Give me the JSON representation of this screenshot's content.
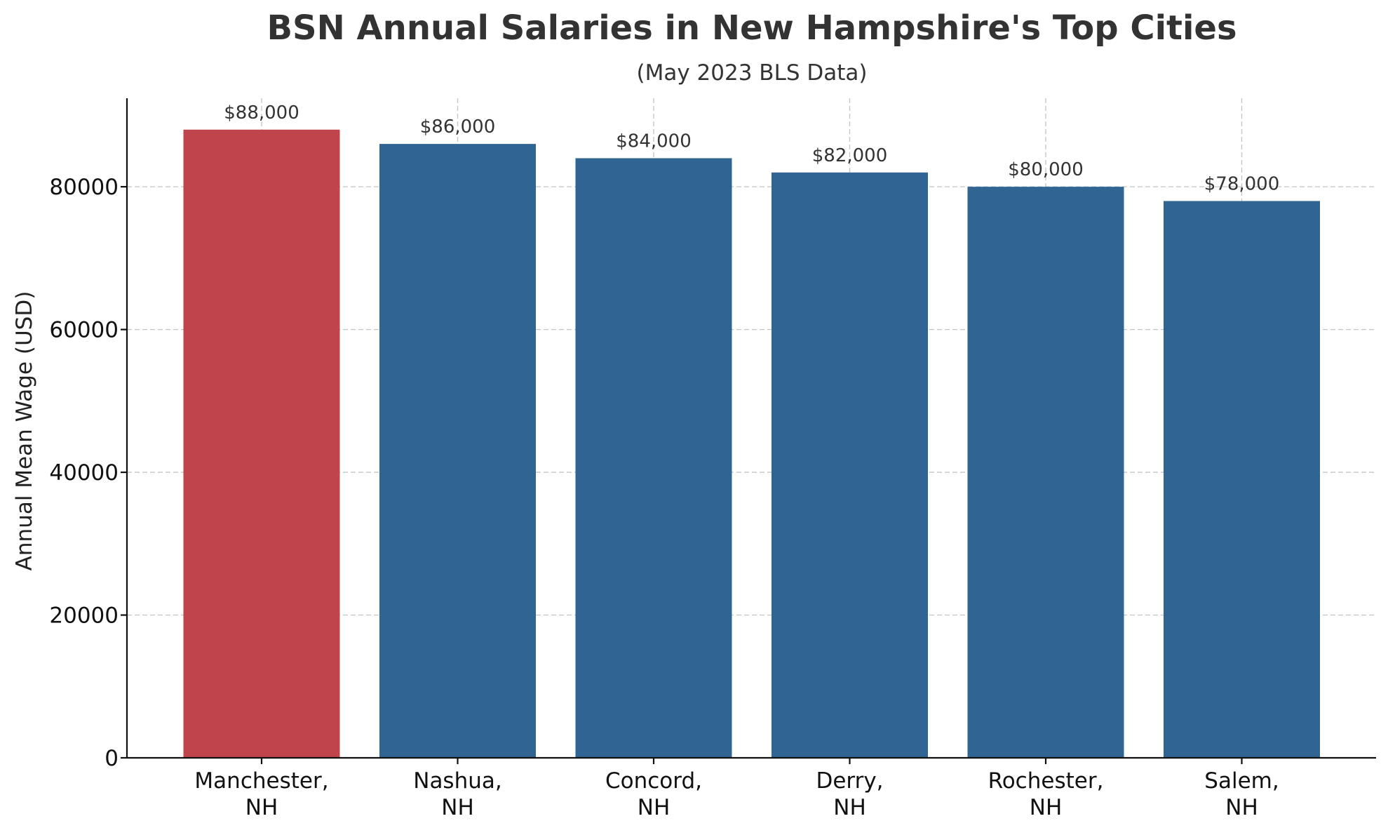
{
  "chart_data": {
    "type": "bar",
    "title": "BSN Annual Salaries in New Hampshire's Top Cities",
    "subtitle": "(May 2023 BLS Data)",
    "xlabel": "",
    "ylabel": "Annual Mean Wage (USD)",
    "categories": [
      [
        "Manchester,",
        "NH"
      ],
      [
        "Nashua,",
        "NH"
      ],
      [
        "Concord,",
        "NH"
      ],
      [
        "Derry,",
        "NH"
      ],
      [
        "Rochester,",
        "NH"
      ],
      [
        "Salem,",
        "NH"
      ]
    ],
    "values": [
      88000,
      86000,
      84000,
      82000,
      80000,
      78000
    ],
    "data_labels": [
      "$88,000",
      "$86,000",
      "$84,000",
      "$82,000",
      "$80,000",
      "$78,000"
    ],
    "bar_colors": [
      "#c0444b",
      "#2f6493",
      "#2f6493",
      "#2f6493",
      "#2f6493",
      "#2f6493"
    ],
    "ylim": [
      0,
      92400
    ],
    "yticks": [
      0,
      20000,
      40000,
      60000,
      80000
    ],
    "ytick_labels": [
      "0",
      "20000",
      "40000",
      "60000",
      "80000"
    ],
    "grid": true,
    "grid_color": "#c4c4c4",
    "axis_color": "#111111",
    "text_color": "#333333"
  }
}
